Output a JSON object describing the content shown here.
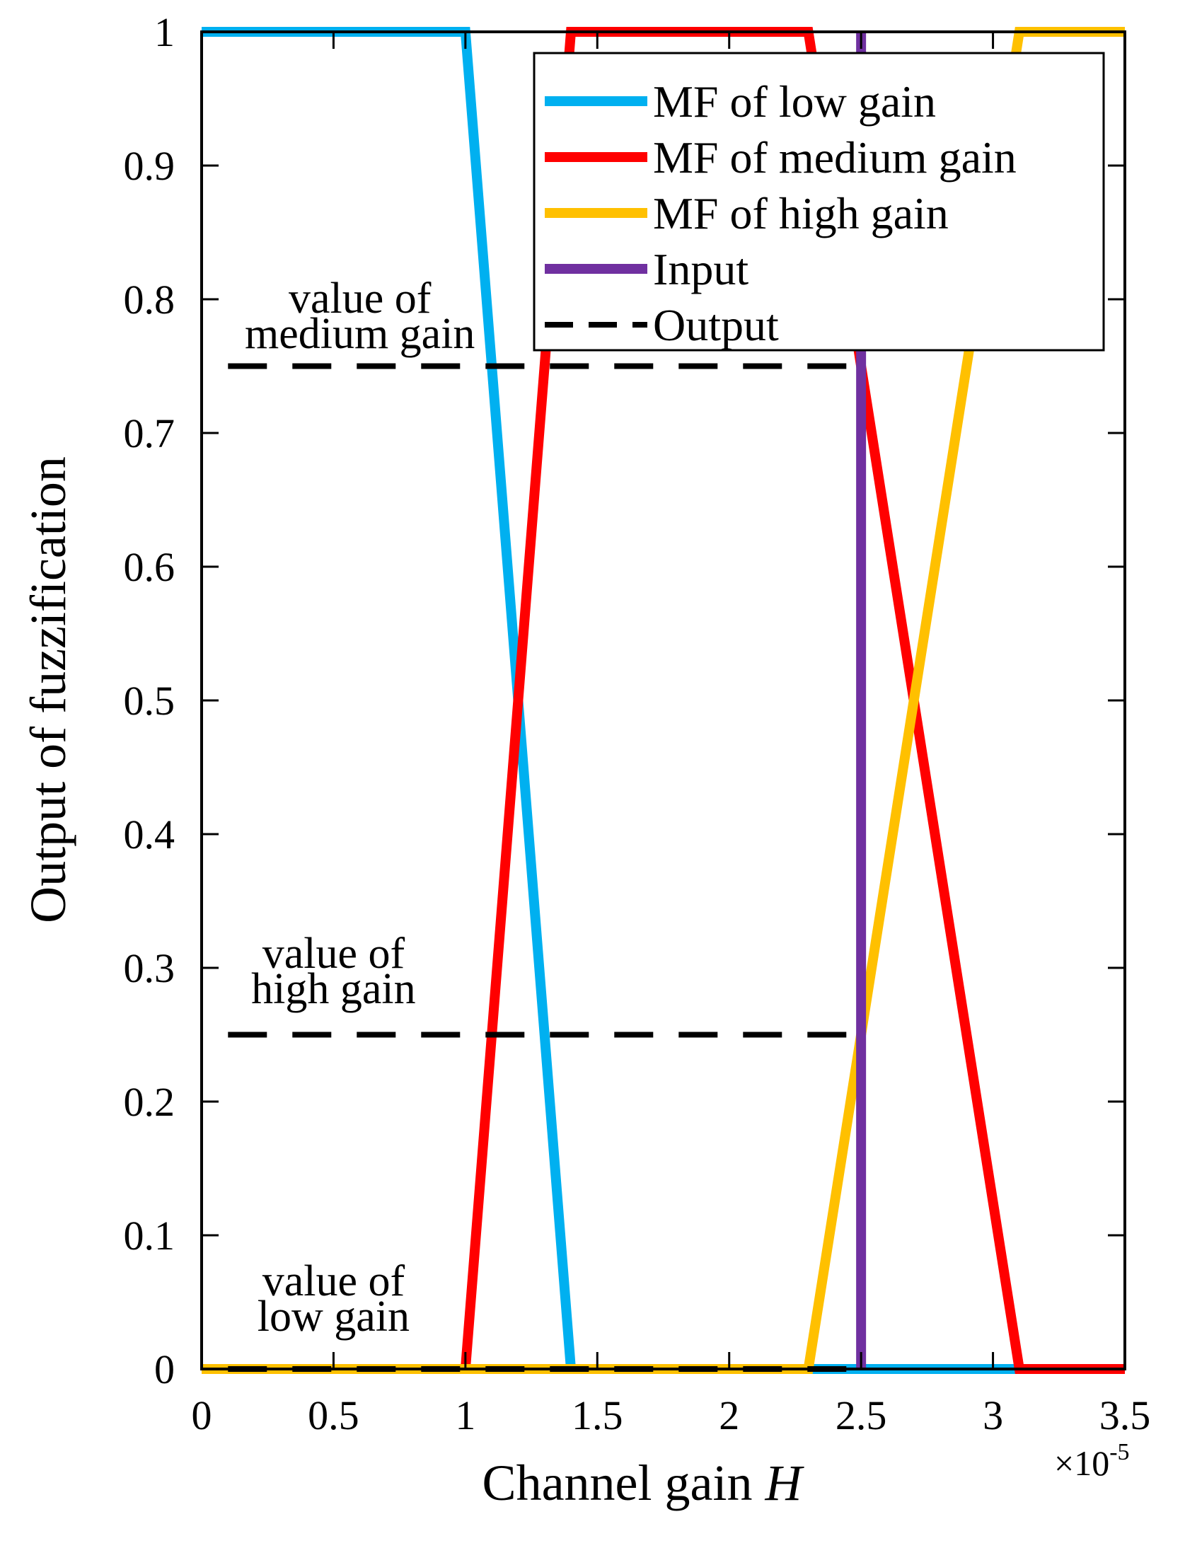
{
  "chart_data": {
    "type": "line",
    "title": "",
    "xlabel": "Channel gain",
    "xlabel_var": "H",
    "ylabel": "Output of fuzzification",
    "x_multiplier": "×10",
    "x_multiplier_exp": "-5",
    "xlim": [
      0,
      3.5
    ],
    "ylim": [
      0,
      1
    ],
    "xticks": [
      "0",
      "0.5",
      "1",
      "1.5",
      "2",
      "2.5",
      "3",
      "3.5"
    ],
    "yticks": [
      "0",
      "0.1",
      "0.2",
      "0.3",
      "0.4",
      "0.5",
      "0.6",
      "0.7",
      "0.8",
      "0.9",
      "1"
    ],
    "legend_position": "top-right",
    "series": [
      {
        "name": "MF of low gain",
        "color": "#00B0F0",
        "style": "solid",
        "x": [
          0,
          1,
          1.4,
          3.5
        ],
        "y": [
          1,
          1,
          0,
          0
        ]
      },
      {
        "name": "MF of medium gain",
        "color": "#FF0000",
        "style": "solid",
        "x": [
          0,
          1,
          1.4,
          2.3,
          3.1,
          3.5
        ],
        "y": [
          0,
          0,
          1,
          1,
          0,
          0
        ]
      },
      {
        "name": "MF of high gain",
        "color": "#FFC000",
        "style": "solid",
        "x": [
          0,
          2.3,
          3.1,
          3.5
        ],
        "y": [
          0,
          0,
          1,
          1
        ]
      },
      {
        "name": "Input",
        "color": "#7030A0",
        "style": "solid",
        "x": [
          2.5,
          2.5
        ],
        "y": [
          0,
          1
        ]
      },
      {
        "name": "Output",
        "color": "#000000",
        "style": "dashed",
        "segments": [
          {
            "x": [
              0.1,
              2.5
            ],
            "y": [
              0.75,
              0.75
            ]
          },
          {
            "x": [
              0.1,
              2.5
            ],
            "y": [
              0.25,
              0.25
            ]
          },
          {
            "x": [
              0.1,
              2.5
            ],
            "y": [
              0,
              0
            ]
          }
        ]
      }
    ],
    "annotations": [
      {
        "lines": [
          "value of",
          "medium gain"
        ],
        "x": 0.6,
        "y": 0.79
      },
      {
        "lines": [
          "value of",
          "high gain"
        ],
        "x": 0.5,
        "y": 0.3
      },
      {
        "lines": [
          "value of",
          "low gain"
        ],
        "x": 0.5,
        "y": 0.055
      }
    ]
  }
}
